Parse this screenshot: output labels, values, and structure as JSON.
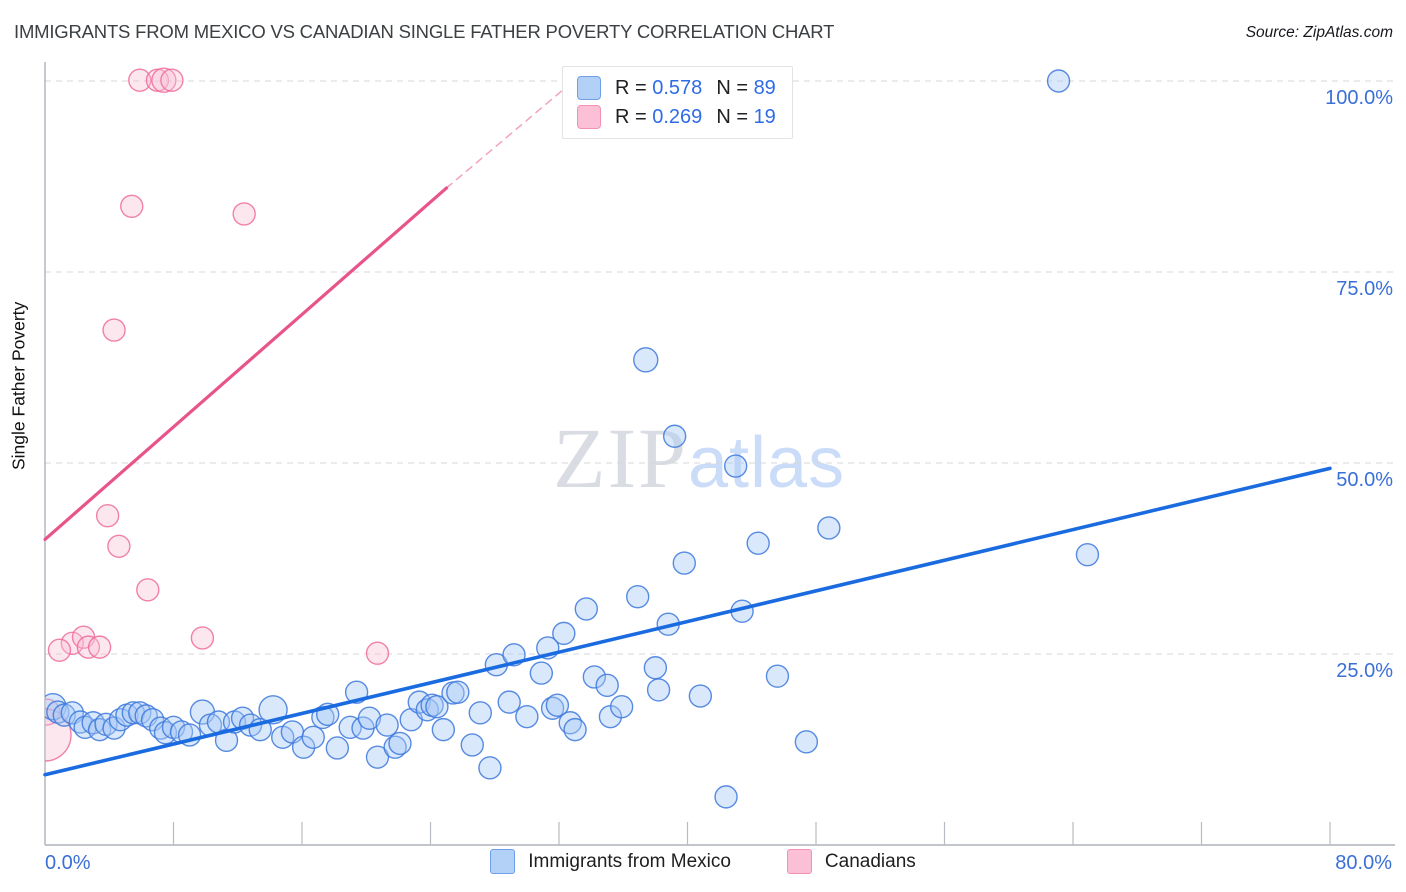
{
  "header": {
    "title": "IMMIGRANTS FROM MEXICO VS CANADIAN SINGLE FATHER POVERTY CORRELATION CHART",
    "source": "Source: ZipAtlas.com"
  },
  "watermark": {
    "zip": "ZIP",
    "atlas": "atlas"
  },
  "legend_box": {
    "series": [
      {
        "swatch_fill": "#b3d0f7",
        "swatch_border": "#6f9fe8",
        "r_label": "R =",
        "r_value": "0.578",
        "n_label": "N =",
        "n_value": "89"
      },
      {
        "swatch_fill": "#fbc0d6",
        "swatch_border": "#f291b2",
        "r_label": "R =",
        "r_value": "0.269",
        "n_label": "N =",
        "n_value": "19"
      }
    ]
  },
  "y_axis": {
    "title": "Single Father Poverty",
    "ticks": [
      {
        "label": "100.0%",
        "value": 100
      },
      {
        "label": "75.0%",
        "value": 75
      },
      {
        "label": "50.0%",
        "value": 50
      },
      {
        "label": "25.0%",
        "value": 25
      }
    ]
  },
  "x_axis": {
    "min_label": "0.0%",
    "max_label": "80.0%",
    "min": 0,
    "max": 80,
    "n_ticks": 10
  },
  "bottom_legend": {
    "items": [
      {
        "label": "Immigrants from Mexico",
        "fill": "#b3d0f7",
        "border": "#6f9fe8"
      },
      {
        "label": "Canadians",
        "fill": "#fbc0d6",
        "border": "#f291b2"
      }
    ]
  },
  "chart_data": {
    "type": "scatter",
    "title": "Immigrants from Mexico vs Canadian Single Father Poverty",
    "xlabel": "Immigrants from Mexico (%)",
    "ylabel": "Single Father Poverty (%)",
    "x_range": [
      0,
      80
    ],
    "y_range": [
      0,
      102.5
    ],
    "grid": {
      "y_values": [
        25,
        50,
        75,
        100
      ],
      "style": "dashed",
      "color": "#d7d7d7"
    },
    "legend_position": "top-center",
    "series": [
      {
        "name": "Immigrants from Mexico",
        "r": 0.578,
        "n": 89,
        "fill": "#a7c7f5",
        "fill_opacity": 0.42,
        "stroke": "#3c78dd",
        "points": [
          [
            0.5,
            18.1,
            13
          ],
          [
            0.8,
            17.4,
            11
          ],
          [
            1.2,
            17.0,
            11
          ],
          [
            1.7,
            17.3,
            11
          ],
          [
            2.2,
            16.1,
            11
          ],
          [
            2.5,
            15.4,
            11
          ],
          [
            3.0,
            16.0,
            11
          ],
          [
            3.4,
            15.1,
            11
          ],
          [
            3.8,
            15.8,
            11
          ],
          [
            4.3,
            15.3,
            11
          ],
          [
            4.7,
            16.4,
            11
          ],
          [
            5.1,
            17.0,
            11
          ],
          [
            5.5,
            17.3,
            11
          ],
          [
            5.9,
            17.3,
            11
          ],
          [
            6.3,
            16.9,
            11
          ],
          [
            6.7,
            16.4,
            11
          ],
          [
            7.2,
            15.3,
            11
          ],
          [
            7.5,
            14.7,
            11
          ],
          [
            8.0,
            15.4,
            11
          ],
          [
            8.5,
            14.8,
            11
          ],
          [
            9.0,
            14.4,
            11
          ],
          [
            9.8,
            17.4,
            12
          ],
          [
            10.3,
            15.7,
            11
          ],
          [
            10.8,
            16.1,
            11
          ],
          [
            11.3,
            13.7,
            11
          ],
          [
            11.8,
            16.1,
            11
          ],
          [
            12.3,
            16.6,
            11
          ],
          [
            12.8,
            15.7,
            11
          ],
          [
            13.4,
            15.1,
            11
          ],
          [
            14.2,
            17.7,
            14
          ],
          [
            14.8,
            14.1,
            11
          ],
          [
            15.4,
            14.8,
            11
          ],
          [
            16.1,
            12.8,
            11
          ],
          [
            16.7,
            14.1,
            11
          ],
          [
            17.3,
            16.7,
            11
          ],
          [
            17.6,
            17.1,
            11
          ],
          [
            18.2,
            12.7,
            11
          ],
          [
            19.0,
            15.4,
            11
          ],
          [
            19.4,
            20.0,
            11
          ],
          [
            19.8,
            15.3,
            11
          ],
          [
            20.2,
            16.6,
            11
          ],
          [
            20.7,
            11.5,
            11
          ],
          [
            21.3,
            15.7,
            11
          ],
          [
            21.8,
            12.8,
            11
          ],
          [
            22.1,
            13.3,
            11
          ],
          [
            22.8,
            16.4,
            11
          ],
          [
            23.3,
            18.7,
            11
          ],
          [
            23.8,
            17.7,
            11
          ],
          [
            24.1,
            18.3,
            11
          ],
          [
            24.4,
            18.1,
            11
          ],
          [
            24.8,
            15.1,
            11
          ],
          [
            25.4,
            19.9,
            11
          ],
          [
            25.7,
            20.0,
            11
          ],
          [
            26.6,
            13.1,
            11
          ],
          [
            27.1,
            17.3,
            11
          ],
          [
            27.7,
            10.1,
            11
          ],
          [
            28.1,
            23.6,
            11
          ],
          [
            28.9,
            18.7,
            11
          ],
          [
            29.2,
            24.9,
            11
          ],
          [
            30.0,
            16.8,
            11
          ],
          [
            30.9,
            22.5,
            11
          ],
          [
            31.3,
            25.8,
            11
          ],
          [
            31.6,
            17.9,
            11
          ],
          [
            31.9,
            18.3,
            11
          ],
          [
            32.3,
            27.7,
            11
          ],
          [
            32.7,
            16.0,
            11
          ],
          [
            33.0,
            15.1,
            11
          ],
          [
            33.7,
            30.9,
            11
          ],
          [
            34.2,
            22.0,
            11
          ],
          [
            35.0,
            20.9,
            11
          ],
          [
            35.2,
            16.8,
            11
          ],
          [
            35.9,
            18.1,
            11
          ],
          [
            36.9,
            32.5,
            11
          ],
          [
            37.4,
            63.5,
            12
          ],
          [
            38.0,
            23.2,
            11
          ],
          [
            38.2,
            20.3,
            11
          ],
          [
            38.8,
            28.9,
            11
          ],
          [
            39.2,
            53.5,
            11
          ],
          [
            39.8,
            36.9,
            11
          ],
          [
            40.8,
            19.5,
            11
          ],
          [
            42.4,
            6.3,
            11
          ],
          [
            43.0,
            49.6,
            11
          ],
          [
            43.4,
            30.6,
            11
          ],
          [
            44.4,
            39.5,
            11
          ],
          [
            45.6,
            22.1,
            11
          ],
          [
            47.4,
            13.5,
            11
          ],
          [
            48.8,
            41.5,
            11
          ],
          [
            63.1,
            100.0,
            11
          ],
          [
            64.9,
            38.0,
            11
          ]
        ]
      },
      {
        "name": "Canadians",
        "r": 0.269,
        "n": 19,
        "fill": "#f8c0d4",
        "fill_opacity": 0.38,
        "stroke": "#ef6c9b",
        "points": [
          [
            5.9,
            100.1,
            11
          ],
          [
            7.0,
            100.1,
            11
          ],
          [
            7.4,
            100.1,
            12
          ],
          [
            7.9,
            100.1,
            11
          ],
          [
            5.4,
            83.6,
            11
          ],
          [
            12.4,
            82.6,
            11
          ],
          [
            4.3,
            67.4,
            11
          ],
          [
            3.9,
            43.1,
            11
          ],
          [
            4.6,
            39.1,
            11
          ],
          [
            6.4,
            33.4,
            11
          ],
          [
            9.8,
            27.1,
            11
          ],
          [
            1.7,
            26.4,
            11
          ],
          [
            2.4,
            27.2,
            11
          ],
          [
            2.7,
            25.9,
            11
          ],
          [
            3.4,
            25.9,
            11
          ],
          [
            0.9,
            25.5,
            11
          ],
          [
            0.1,
            17.4,
            13
          ],
          [
            0.0,
            14.4,
            26
          ],
          [
            20.7,
            25.1,
            11
          ]
        ]
      }
    ],
    "trend_lines": [
      {
        "series": "Immigrants from Mexico",
        "color": "#1a6be0",
        "width": 3.6,
        "style": "solid",
        "x1": 0,
        "y1": 9.2,
        "x2": 80,
        "y2": 49.3
      },
      {
        "series": "Canadians",
        "color": "#e8548a",
        "width": 3.2,
        "style": "solid",
        "x1": 0,
        "y1": 40.0,
        "x2": 25,
        "y2": 86.0
      },
      {
        "series": "Canadians",
        "color": "#e8548a",
        "width": 1.5,
        "style": "dashed",
        "x1": 25,
        "y1": 86.0,
        "x2": 33.8,
        "y2": 101.6
      }
    ]
  }
}
